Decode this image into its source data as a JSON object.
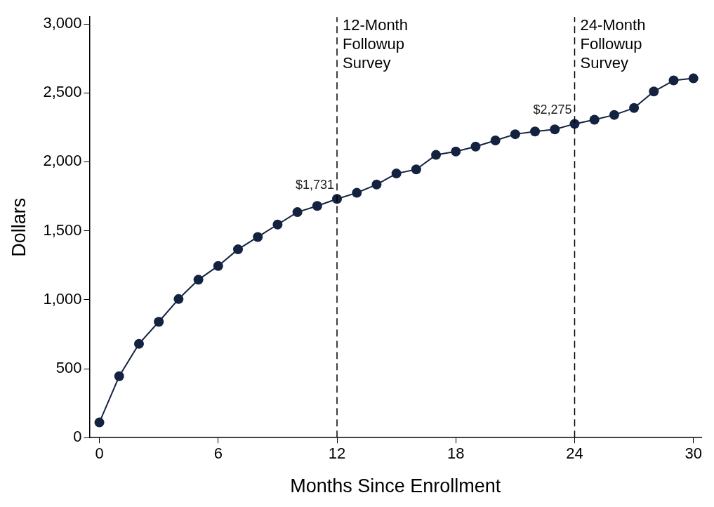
{
  "chart_data": {
    "type": "line",
    "xlabel": "Months Since Enrollment",
    "ylabel": "Dollars",
    "x": [
      0,
      1,
      2,
      3,
      4,
      5,
      6,
      7,
      8,
      9,
      10,
      11,
      12,
      13,
      14,
      15,
      16,
      17,
      18,
      19,
      20,
      21,
      22,
      23,
      24,
      25,
      26,
      27,
      28,
      29,
      30
    ],
    "series": [
      {
        "color": "#13233f",
        "values": [
          110,
          445,
          680,
          840,
          1005,
          1145,
          1245,
          1365,
          1455,
          1545,
          1635,
          1680,
          1731,
          1775,
          1835,
          1915,
          1945,
          2050,
          2075,
          2110,
          2155,
          2200,
          2220,
          2235,
          2275,
          2305,
          2340,
          2390,
          2510,
          2590,
          2605
        ],
        "value_labels": [
          null,
          null,
          null,
          null,
          null,
          null,
          null,
          null,
          null,
          null,
          null,
          null,
          "$1,731",
          null,
          null,
          null,
          null,
          null,
          null,
          null,
          null,
          null,
          null,
          null,
          "$2,275",
          null,
          null,
          null,
          null,
          null,
          null
        ]
      }
    ],
    "xlim": [
      -0.5,
      30.4
    ],
    "xticks": [
      0,
      6,
      12,
      18,
      24,
      30
    ],
    "ylim": [
      0,
      3050
    ],
    "yticks": [
      {
        "value": 0,
        "label": "0"
      },
      {
        "value": 500,
        "label": "500"
      },
      {
        "value": 1000,
        "label": "1,000"
      },
      {
        "value": 1500,
        "label": "1,500"
      },
      {
        "value": 2000,
        "label": "2,000"
      },
      {
        "value": 2500,
        "label": "2,500"
      },
      {
        "value": 3000,
        "label": "3,000"
      }
    ],
    "ref_lines": [
      {
        "axis": "x",
        "value": 12,
        "label": "12-Month\nFollowup\nSurvey",
        "color": "#000000",
        "line_style": "dashed"
      },
      {
        "axis": "x",
        "value": 24,
        "label": "24-Month\nFollowup\nSurvey",
        "color": "#000000",
        "line_style": "dashed"
      }
    ],
    "grid": false,
    "legend": false,
    "marker": "circle",
    "line_style": "solid"
  }
}
